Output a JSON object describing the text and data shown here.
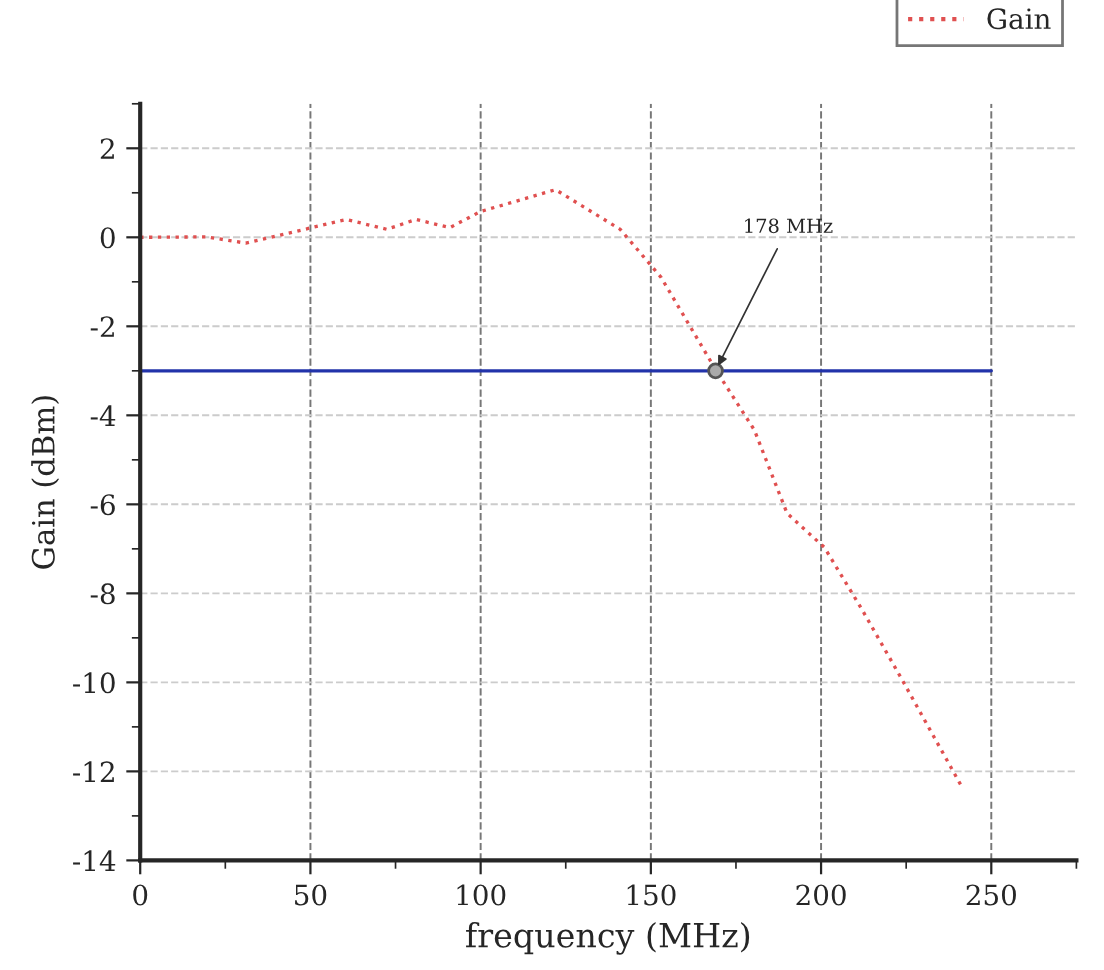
{
  "chart_data": {
    "type": "line",
    "xlabel": "frequency (MHz)",
    "ylabel": "Gain (dBm)",
    "series": [
      {
        "name": "Gain",
        "color": "#e05050",
        "line_style": "dotted",
        "x": [
          0,
          19.4,
          31,
          60.6,
          72.4,
          81,
          91,
          100,
          122,
          141,
          153,
          169,
          180.4,
          190,
          201,
          212,
          223.5,
          241
        ],
        "values": [
          0,
          0.01,
          -0.13,
          0.4,
          0.18,
          0.4,
          0.22,
          0.58,
          1.07,
          0.18,
          -0.9,
          -2.97,
          -4.33,
          -6.2,
          -6.97,
          -8.36,
          -9.9,
          -12.3
        ]
      },
      {
        "color": "#2233aa",
        "line_style": "solid",
        "x": [
          0,
          250
        ],
        "values": [
          -3,
          -3
        ]
      }
    ],
    "annotations": [
      {
        "text": "178 MHz",
        "x": 169,
        "y": -3
      }
    ],
    "xlim": [
      0,
      275
    ],
    "xticks": [
      0,
      50,
      100,
      150,
      200,
      250
    ],
    "ylim": [
      -14,
      3
    ],
    "yticks": [
      -14,
      -12,
      -10,
      -8,
      -6,
      -4,
      -2,
      0,
      2
    ],
    "grid": true,
    "legend": "top right"
  }
}
